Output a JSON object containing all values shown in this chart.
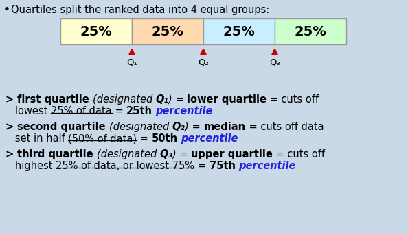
{
  "bg_color": "#c9d9e8",
  "box_colors": [
    "#ffffd0",
    "#ffd9b0",
    "#c8eeff",
    "#ccffcc"
  ],
  "box_labels": [
    "25%",
    "25%",
    "25%",
    "25%"
  ],
  "q_labels": [
    "Q₁",
    "Q₂",
    "Q₃"
  ],
  "arrow_color": "#cc0000",
  "text_color": "#000000",
  "blue_color": "#2222dd",
  "figw": 5.94,
  "figh": 3.42,
  "dpi": 100
}
